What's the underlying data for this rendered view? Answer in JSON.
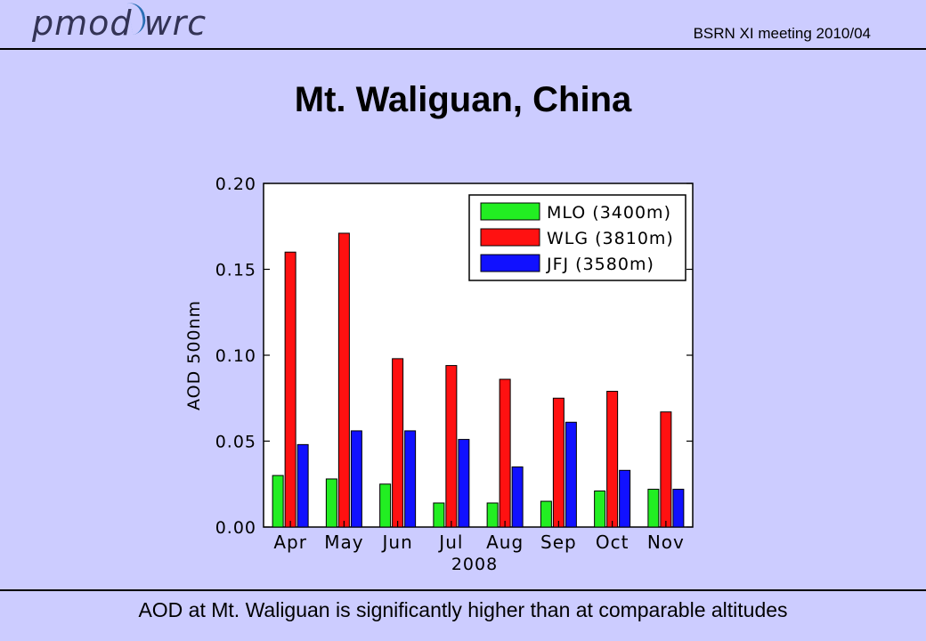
{
  "header": {
    "logo_text": "pmod wrc",
    "meeting_label": "BSRN XI meeting  2010/04"
  },
  "slide": {
    "title": "Mt. Waliguan, China",
    "caption": "AOD at Mt. Waliguan is significantly higher than at comparable altitudes"
  },
  "colors": {
    "MLO": "#22ee22",
    "WLG": "#ff1111",
    "JFJ": "#1111ff",
    "background": "#ccccff"
  },
  "chart_data": {
    "type": "bar",
    "title": "",
    "xlabel": "2008",
    "ylabel": "AOD 500nm",
    "ylim": [
      0,
      0.2
    ],
    "yticks": [
      "0.00",
      "0.05",
      "0.10",
      "0.15",
      "0.20"
    ],
    "ytick_values": [
      0,
      0.05,
      0.1,
      0.15,
      0.2
    ],
    "categories": [
      "Apr",
      "May",
      "Jun",
      "Jul",
      "Aug",
      "Sep",
      "Oct",
      "Nov"
    ],
    "legend_position": "top-right",
    "grid": false,
    "series": [
      {
        "name": "MLO (3400m)",
        "key": "MLO",
        "values": [
          0.03,
          0.028,
          0.025,
          0.014,
          0.014,
          0.015,
          0.021,
          0.022
        ]
      },
      {
        "name": "WLG (3810m)",
        "key": "WLG",
        "values": [
          0.16,
          0.171,
          0.098,
          0.094,
          0.086,
          0.075,
          0.079,
          0.067
        ]
      },
      {
        "name": "JFJ (3580m)",
        "key": "JFJ",
        "values": [
          0.048,
          0.056,
          0.056,
          0.051,
          0.035,
          0.061,
          0.033,
          0.022
        ]
      }
    ]
  }
}
